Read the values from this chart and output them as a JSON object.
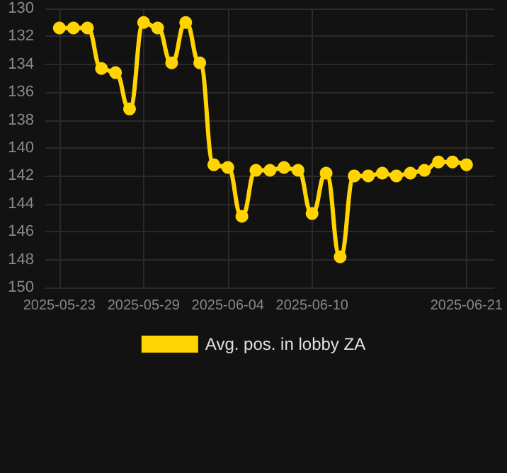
{
  "chart_data": {
    "type": "line",
    "x": [
      "2025-05-23",
      "2025-05-24",
      "2025-05-25",
      "2025-05-26",
      "2025-05-27",
      "2025-05-28",
      "2025-05-29",
      "2025-05-30",
      "2025-05-31",
      "2025-06-01",
      "2025-06-02",
      "2025-06-03",
      "2025-06-04",
      "2025-06-05",
      "2025-06-06",
      "2025-06-07",
      "2025-06-08",
      "2025-06-09",
      "2025-06-10",
      "2025-06-11",
      "2025-06-12",
      "2025-06-13",
      "2025-06-14",
      "2025-06-15",
      "2025-06-16",
      "2025-06-17",
      "2025-06-18",
      "2025-06-19",
      "2025-06-20",
      "2025-06-21"
    ],
    "series": [
      {
        "name": "Avg. pos. in lobby ZA",
        "color": "#ffd400",
        "values": [
          131.4,
          131.4,
          131.4,
          134.3,
          134.6,
          137.2,
          131.0,
          131.4,
          133.9,
          131.0,
          133.9,
          141.2,
          141.4,
          144.9,
          141.6,
          141.6,
          141.4,
          141.6,
          144.7,
          141.8,
          147.8,
          142.0,
          142.0,
          141.8,
          142.0,
          141.8,
          141.6,
          141.0,
          141.0,
          141.2
        ]
      }
    ],
    "xlim": [
      "2025-05-22",
      "2025-06-23"
    ],
    "xticks": [
      "2025-05-23",
      "2025-05-29",
      "2025-06-04",
      "2025-06-10",
      "2025-06-21"
    ],
    "ylim": [
      150,
      130
    ],
    "yticks": [
      130,
      132,
      134,
      136,
      138,
      140,
      142,
      144,
      146,
      148,
      150
    ],
    "grid": true,
    "legend": "bottom",
    "marker": "circle",
    "line_style": "solid"
  }
}
